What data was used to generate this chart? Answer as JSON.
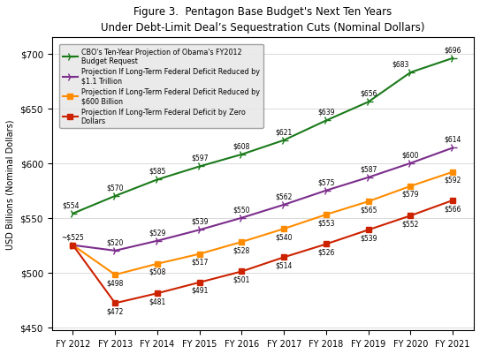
{
  "title_line1": "Figure 3.  Pentagon Base Budget's Next Ten Years",
  "title_line2": "Under Debt-Limit Deal’s Sequestration Cuts (Nominal Dollars)",
  "xlabel": "",
  "ylabel": "USD Billions (Nominal Dollars)",
  "years": [
    "FY 2012",
    "FY 2013",
    "FY 2014",
    "FY 2015",
    "FY 2016",
    "FY 2017",
    "FY 2018",
    "FY 2019",
    "FY 2020",
    "FY 2021"
  ],
  "series": [
    {
      "label": "CBO's Ten-Year Projection of Obama's FY2012\nBudget Request",
      "values": [
        554,
        570,
        585,
        597,
        608,
        621,
        639,
        656,
        683,
        696
      ],
      "color": "#1a7a1a",
      "marker": "4",
      "linewidth": 1.5,
      "markersize": 7
    },
    {
      "label": "Projection If Long-Term Federal Deficit Reduced by\n$1.1 Trillion",
      "values": [
        525,
        520,
        529,
        539,
        550,
        562,
        575,
        587,
        600,
        614
      ],
      "color": "#7B2D8B",
      "marker": "4",
      "linewidth": 1.5,
      "markersize": 7
    },
    {
      "label": "Projection If Long-Term Federal Deficit Reduced by\n$600 Billion",
      "values": [
        525,
        498,
        508,
        517,
        528,
        540,
        553,
        565,
        579,
        592
      ],
      "color": "#FF8C00",
      "marker": "s",
      "linewidth": 1.5,
      "markersize": 4
    },
    {
      "label": "Projection If Long-Term Federal Deficit by Zero\nDollars",
      "values": [
        525,
        472,
        481,
        491,
        501,
        514,
        526,
        539,
        552,
        566
      ],
      "color": "#CC2200",
      "marker": "s",
      "linewidth": 1.5,
      "markersize": 4
    }
  ],
  "ylim": [
    447,
    715
  ],
  "yticks": [
    450,
    500,
    550,
    600,
    650,
    700
  ],
  "ytick_labels": [
    "$450",
    "$500",
    "$550",
    "$600",
    "$650",
    "$700"
  ],
  "background_color": "#ffffff"
}
